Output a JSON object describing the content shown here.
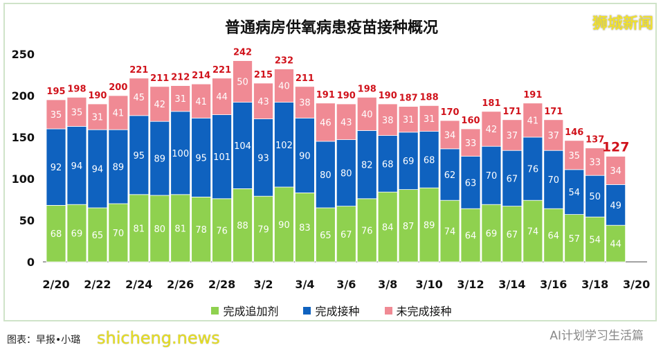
{
  "chart_data": {
    "type": "bar",
    "stacked": true,
    "title": "普通病房供氧病患疫苗接种概况",
    "categories": [
      "2/20",
      "2/21",
      "2/22",
      "2/23",
      "2/24",
      "2/25",
      "2/26",
      "2/27",
      "2/28",
      "3/1",
      "3/2",
      "3/3",
      "3/4",
      "3/5",
      "3/6",
      "3/7",
      "3/8",
      "3/9",
      "3/10",
      "3/11",
      "3/12",
      "3/13",
      "3/14",
      "3/15",
      "3/16",
      "3/17",
      "3/18",
      "3/19"
    ],
    "x_tick_labels": [
      "2/20",
      "2/22",
      "2/24",
      "2/26",
      "2/28",
      "3/2",
      "3/4",
      "3/6",
      "3/8",
      "3/10",
      "3/12",
      "3/14",
      "3/16",
      "3/18",
      "3/20"
    ],
    "y_ticks": [
      0,
      50,
      100,
      150,
      200,
      250
    ],
    "ylim": [
      0,
      250
    ],
    "grid": false,
    "legend_position": "bottom",
    "series": [
      {
        "name": "完成追加剂",
        "color": "#8fd14f",
        "values": [
          68,
          69,
          65,
          70,
          81,
          80,
          81,
          78,
          76,
          88,
          79,
          90,
          83,
          65,
          67,
          76,
          84,
          87,
          89,
          74,
          64,
          69,
          67,
          74,
          64,
          57,
          54,
          44
        ]
      },
      {
        "name": "完成接种",
        "color": "#0f62bf",
        "values": [
          92,
          94,
          94,
          89,
          95,
          89,
          100,
          95,
          101,
          104,
          93,
          102,
          90,
          80,
          80,
          82,
          68,
          69,
          68,
          62,
          63,
          70,
          67,
          76,
          70,
          54,
          50,
          49
        ]
      },
      {
        "name": "未完成接种",
        "color": "#f08a94",
        "values": [
          35,
          35,
          31,
          41,
          45,
          42,
          31,
          41,
          44,
          50,
          43,
          40,
          38,
          46,
          43,
          40,
          38,
          31,
          31,
          34,
          33,
          42,
          37,
          41,
          37,
          35,
          33,
          34
        ]
      }
    ],
    "totals": [
      195,
      198,
      190,
      200,
      221,
      211,
      212,
      214,
      221,
      242,
      215,
      232,
      211,
      191,
      190,
      198,
      190,
      187,
      188,
      170,
      160,
      181,
      171,
      191,
      171,
      146,
      137,
      127
    ],
    "total_label_color": "#d0121b"
  },
  "watermarks": {
    "top_right": "狮城新闻",
    "bottom_left": "shicheng.news",
    "bottom_right": "AI计划学习生活篇"
  },
  "source": "图表：早报•小璐"
}
